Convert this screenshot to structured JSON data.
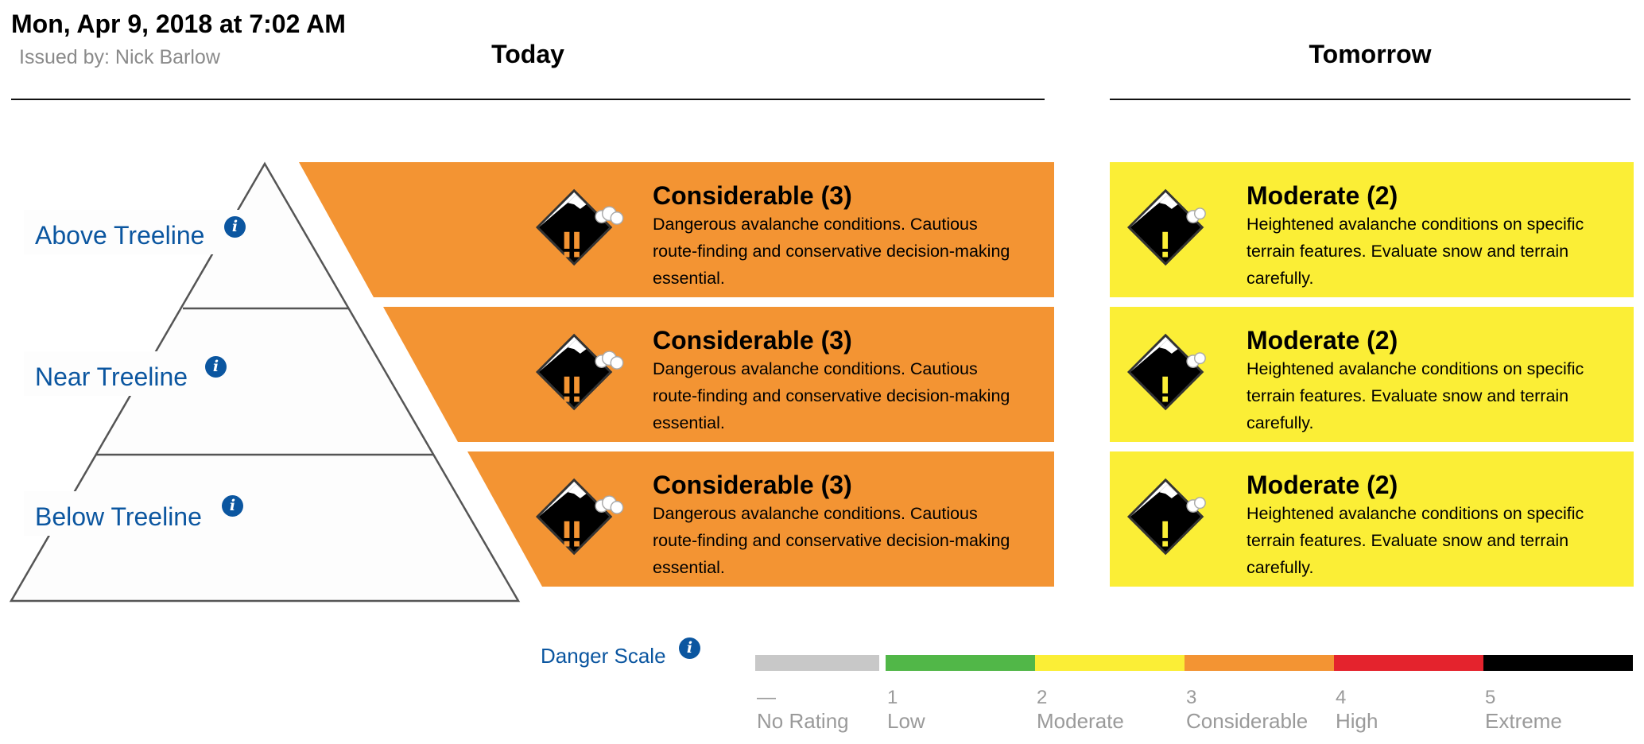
{
  "header": {
    "date_title": "Mon, Apr 9, 2018 at 7:02 AM",
    "issued_by": "Issued by: Nick Barlow",
    "today_label": "Today",
    "tomorrow_label": "Tomorrow"
  },
  "elevations": [
    {
      "label": "Above Treeline",
      "info_icon": "info-icon"
    },
    {
      "label": "Near Treeline",
      "info_icon": "info-icon"
    },
    {
      "label": "Below Treeline",
      "info_icon": "info-icon"
    }
  ],
  "today": [
    {
      "rating": "Considerable (3)",
      "level": 3,
      "color": "#f39433",
      "icon": "considerable-danger-icon",
      "description": "Dangerous avalanche conditions. Cautious route-finding and conservative decision-making essential."
    },
    {
      "rating": "Considerable (3)",
      "level": 3,
      "color": "#f39433",
      "icon": "considerable-danger-icon",
      "description": "Dangerous avalanche conditions. Cautious route-finding and conservative decision-making essential."
    },
    {
      "rating": "Considerable (3)",
      "level": 3,
      "color": "#f39433",
      "icon": "considerable-danger-icon",
      "description": "Dangerous avalanche conditions. Cautious route-finding and conservative decision-making essential."
    }
  ],
  "tomorrow": [
    {
      "rating": "Moderate (2)",
      "level": 2,
      "color": "#fbee36",
      "icon": "moderate-danger-icon",
      "description": "Heightened avalanche conditions on specific terrain features. Evaluate snow and terrain carefully."
    },
    {
      "rating": "Moderate (2)",
      "level": 2,
      "color": "#fbee36",
      "icon": "moderate-danger-icon",
      "description": "Heightened avalanche conditions on specific terrain features. Evaluate snow and terrain carefully."
    },
    {
      "rating": "Moderate (2)",
      "level": 2,
      "color": "#fbee36",
      "icon": "moderate-danger-icon",
      "description": "Heightened avalanche conditions on specific terrain features. Evaluate snow and terrain carefully."
    }
  ],
  "danger_scale": {
    "label": "Danger Scale",
    "info_icon": "info-icon",
    "levels": [
      {
        "number": "—",
        "name": "No Rating",
        "color": "#c8c8c8"
      },
      {
        "number": "1",
        "name": "Low",
        "color": "#51b748"
      },
      {
        "number": "2",
        "name": "Moderate",
        "color": "#fbee36"
      },
      {
        "number": "3",
        "name": "Considerable",
        "color": "#f39433"
      },
      {
        "number": "4",
        "name": "High",
        "color": "#e4232d"
      },
      {
        "number": "5",
        "name": "Extreme",
        "color": "#000000"
      }
    ]
  }
}
